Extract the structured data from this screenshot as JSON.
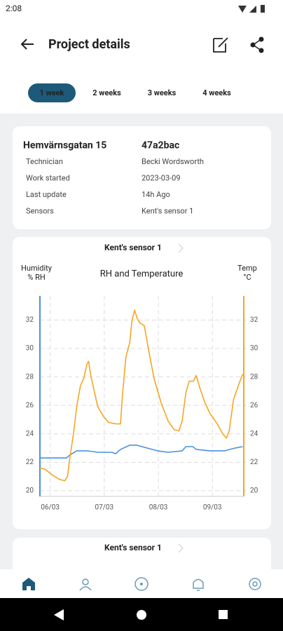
{
  "status": {
    "time": "2:08"
  },
  "header": {
    "title": "Project details"
  },
  "tabs": [
    "1 week",
    "2 weeks",
    "3 weeks",
    "4 weeks"
  ],
  "info": {
    "title": "Hemvärnsgatan 15",
    "id": "47a2bac",
    "rows": [
      [
        "Technician",
        "Becki Wordsworth"
      ],
      [
        "Work started",
        "2023-03-09"
      ],
      [
        "Last update",
        "14h Ago"
      ],
      [
        "Sensors",
        "Kent's sensor 1"
      ]
    ]
  },
  "cards": [
    "Kent's sensor 1",
    "Kent's sensor 1"
  ],
  "chart_data": {
    "type": "line",
    "title": "RH and Temperature",
    "y_label": [
      "Humidity",
      "% RH"
    ],
    "y2_label": [
      "Temp",
      "°C"
    ],
    "xlim": [
      5.81,
      9.58
    ],
    "xticks": [
      {
        "value": 6,
        "label": "06/03"
      },
      {
        "value": 7,
        "label": "07/03"
      },
      {
        "value": 8,
        "label": "08/03"
      },
      {
        "value": 9,
        "label": "09/03"
      }
    ],
    "ylim": [
      19.6,
      33.7
    ],
    "yticks": [
      20,
      22,
      24,
      26,
      28,
      30,
      32
    ],
    "y2lim": [
      19.6,
      33.7
    ],
    "y2ticks": [
      20,
      22,
      24,
      26,
      28,
      30,
      32
    ],
    "grid": true,
    "series": [
      {
        "name": "Humidity",
        "color": "#4a90e2",
        "axis": "y",
        "x": [
          5.81,
          6.3,
          6.36,
          6.49,
          6.69,
          6.88,
          7.14,
          7.21,
          7.3,
          7.47,
          7.6,
          7.79,
          7.99,
          8.18,
          8.44,
          8.51,
          8.64,
          8.7,
          8.96,
          9.22,
          9.42,
          9.56
        ],
        "values": [
          22.3,
          22.3,
          22.5,
          22.8,
          22.8,
          22.7,
          22.7,
          22.6,
          22.9,
          23.2,
          23.2,
          23.0,
          22.8,
          22.7,
          22.8,
          23.1,
          23.1,
          22.9,
          22.8,
          22.8,
          23.0,
          23.1
        ]
      },
      {
        "name": "Temp",
        "color": "#f5a623",
        "axis": "y2",
        "x": [
          5.81,
          5.91,
          6.04,
          6.17,
          6.27,
          6.32,
          6.36,
          6.43,
          6.49,
          6.56,
          6.62,
          6.68,
          6.71,
          6.75,
          6.82,
          6.88,
          6.99,
          7.08,
          7.21,
          7.3,
          7.34,
          7.4,
          7.47,
          7.51,
          7.56,
          7.61,
          7.66,
          7.74,
          7.82,
          7.92,
          8.05,
          8.18,
          8.29,
          8.38,
          8.44,
          8.51,
          8.57,
          8.65,
          8.7,
          8.77,
          8.86,
          8.96,
          9.09,
          9.19,
          9.26,
          9.31,
          9.39,
          9.48,
          9.56
        ],
        "values": [
          21.6,
          21.5,
          21.1,
          20.8,
          20.7,
          21.0,
          22.2,
          24.0,
          25.9,
          27.4,
          27.9,
          28.9,
          29.1,
          28.1,
          26.9,
          25.9,
          25.2,
          24.8,
          24.7,
          24.7,
          26.9,
          29.4,
          30.4,
          31.9,
          32.7,
          32.1,
          31.8,
          31.6,
          29.9,
          27.9,
          26.2,
          24.9,
          24.3,
          24.2,
          24.9,
          26.9,
          27.7,
          27.7,
          28.1,
          27.2,
          26.2,
          25.4,
          24.7,
          24.0,
          23.7,
          24.2,
          26.4,
          27.4,
          28.2
        ]
      }
    ]
  }
}
